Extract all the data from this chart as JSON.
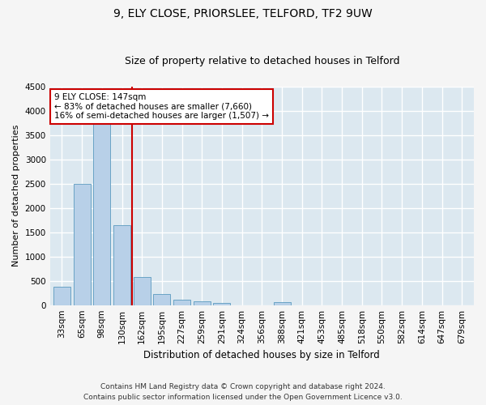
{
  "title1": "9, ELY CLOSE, PRIORSLEE, TELFORD, TF2 9UW",
  "title2": "Size of property relative to detached houses in Telford",
  "xlabel": "Distribution of detached houses by size in Telford",
  "ylabel": "Number of detached properties",
  "categories": [
    "33sqm",
    "65sqm",
    "98sqm",
    "130sqm",
    "162sqm",
    "195sqm",
    "227sqm",
    "259sqm",
    "291sqm",
    "324sqm",
    "356sqm",
    "388sqm",
    "421sqm",
    "453sqm",
    "485sqm",
    "518sqm",
    "550sqm",
    "582sqm",
    "614sqm",
    "647sqm",
    "679sqm"
  ],
  "values": [
    370,
    2500,
    3750,
    1650,
    580,
    230,
    110,
    70,
    40,
    0,
    0,
    55,
    0,
    0,
    0,
    0,
    0,
    0,
    0,
    0,
    0
  ],
  "bar_color": "#b8d0e8",
  "bar_edge_color": "#5a9abf",
  "vline_x": 3.5,
  "vline_color": "#cc0000",
  "annotation_text": "9 ELY CLOSE: 147sqm\n← 83% of detached houses are smaller (7,660)\n16% of semi-detached houses are larger (1,507) →",
  "annotation_box_color": "#ffffff",
  "annotation_box_edge": "#cc0000",
  "ylim": [
    0,
    4500
  ],
  "yticks": [
    0,
    500,
    1000,
    1500,
    2000,
    2500,
    3000,
    3500,
    4000,
    4500
  ],
  "bg_color": "#dce8f0",
  "grid_color": "#ffffff",
  "fig_color": "#f5f5f5",
  "footer": "Contains HM Land Registry data © Crown copyright and database right 2024.\nContains public sector information licensed under the Open Government Licence v3.0.",
  "title1_fontsize": 10,
  "title2_fontsize": 9,
  "xlabel_fontsize": 8.5,
  "ylabel_fontsize": 8,
  "tick_fontsize": 7.5,
  "annot_fontsize": 7.5,
  "footer_fontsize": 6.5
}
